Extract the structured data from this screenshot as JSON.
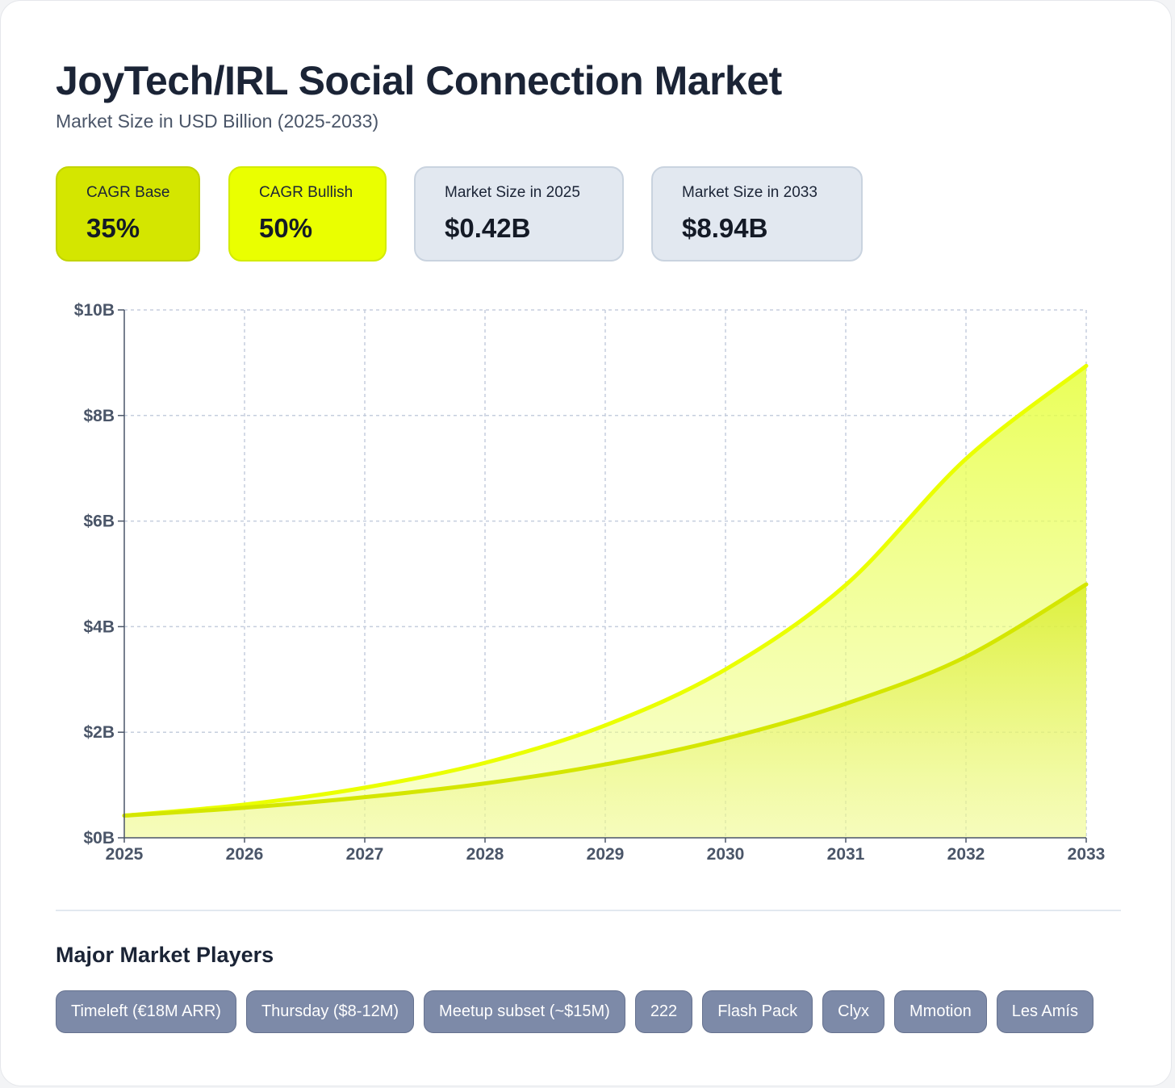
{
  "header": {
    "title": "JoyTech/IRL Social Connection Market",
    "subtitle": "Market Size in USD Billion (2025-2033)"
  },
  "stats": {
    "cagr_base": {
      "label": "CAGR Base",
      "value": "35%"
    },
    "cagr_bullish": {
      "label": "CAGR Bullish",
      "value": "50%"
    },
    "size_2025": {
      "label": "Market Size in 2025",
      "value": "$0.42B"
    },
    "size_2033": {
      "label": "Market Size in 2033",
      "value": "$8.94B"
    }
  },
  "colors": {
    "base_line": "#d4e600",
    "bullish_line": "#eaff00",
    "grid": "#c5cedd",
    "axis": "#4a5568"
  },
  "chart_data": {
    "type": "area",
    "x": [
      2025,
      2026,
      2027,
      2028,
      2029,
      2030,
      2031,
      2032,
      2033
    ],
    "series": [
      {
        "name": "Bullish",
        "values": [
          0.42,
          0.63,
          0.95,
          1.42,
          2.13,
          3.19,
          4.79,
          7.18,
          8.94
        ]
      },
      {
        "name": "Base",
        "values": [
          0.42,
          0.57,
          0.77,
          1.03,
          1.39,
          1.88,
          2.54,
          3.43,
          4.8
        ]
      }
    ],
    "ylim": [
      0,
      10
    ],
    "y_ticks": [
      "$0B",
      "$2B",
      "$4B",
      "$6B",
      "$8B",
      "$10B"
    ],
    "x_ticks": [
      "2025",
      "2026",
      "2027",
      "2028",
      "2029",
      "2030",
      "2031",
      "2032",
      "2033"
    ],
    "grid": true
  },
  "players": {
    "heading": "Major Market Players",
    "items": [
      "Timeleft (€18M ARR)",
      "Thursday ($8-12M)",
      "Meetup subset (~$15M)",
      "222",
      "Flash Pack",
      "Clyx",
      "Mmotion",
      "Les Amís"
    ]
  }
}
